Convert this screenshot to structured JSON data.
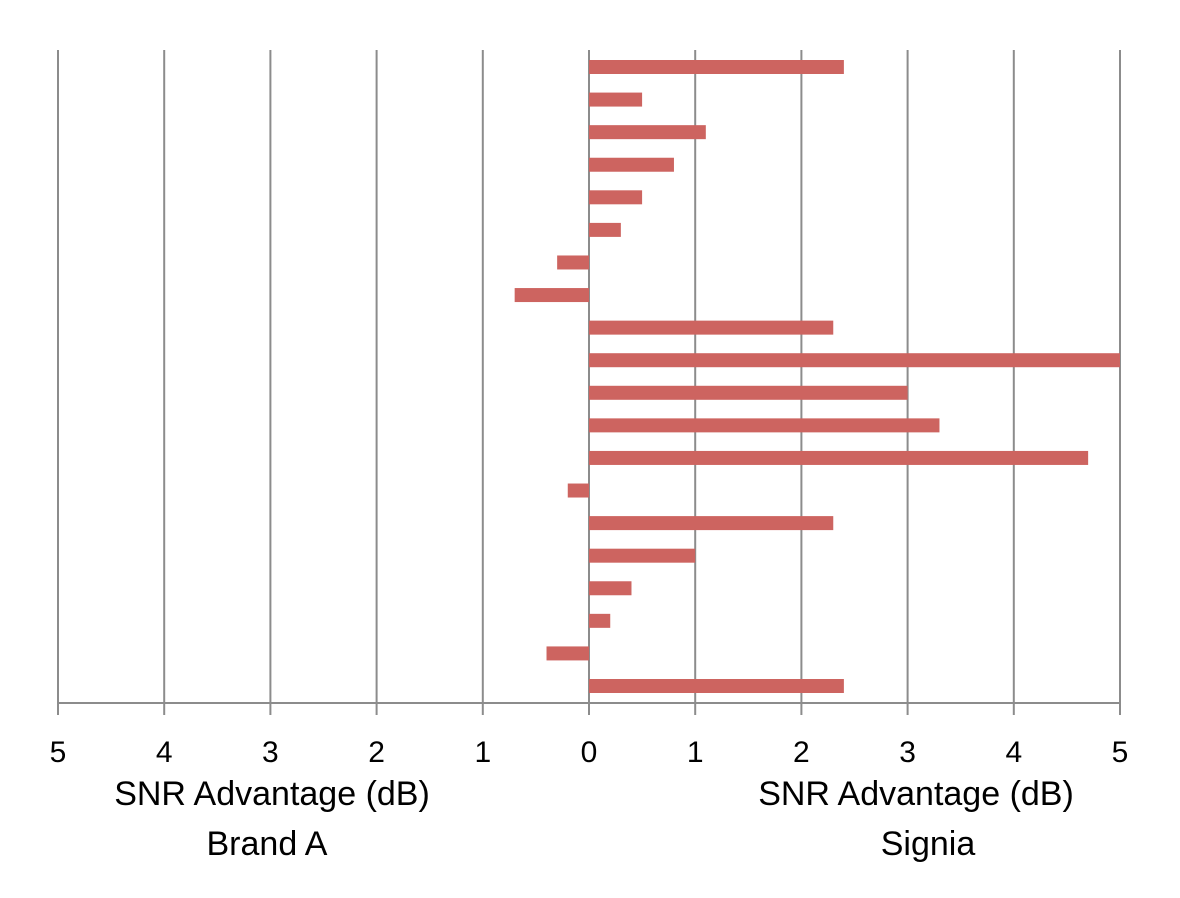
{
  "chart_data": {
    "type": "bar",
    "orientation": "horizontal",
    "values": [
      2.4,
      0.5,
      1.1,
      0.8,
      0.5,
      0.3,
      -0.3,
      -0.7,
      2.3,
      5.0,
      3.0,
      3.3,
      4.7,
      -0.2,
      2.3,
      1.0,
      0.4,
      0.2,
      -0.4,
      2.4
    ],
    "xlim": [
      -5,
      5
    ],
    "x_ticks": [
      -5,
      -4,
      -3,
      -2,
      -1,
      0,
      1,
      2,
      3,
      4,
      5
    ],
    "x_tick_labels": [
      "5",
      "4",
      "3",
      "2",
      "1",
      "0",
      "1",
      "2",
      "3",
      "4",
      "5"
    ],
    "left_axis_label": "SNR Advantage (dB)",
    "left_axis_group": "Brand A",
    "right_axis_label": "SNR Advantage (dB)",
    "right_axis_group": "Signia",
    "grid": "vertical",
    "bar_color": "#cd6460",
    "grid_color": "#8c8c8c",
    "axis_color": "#8c8c8c"
  }
}
